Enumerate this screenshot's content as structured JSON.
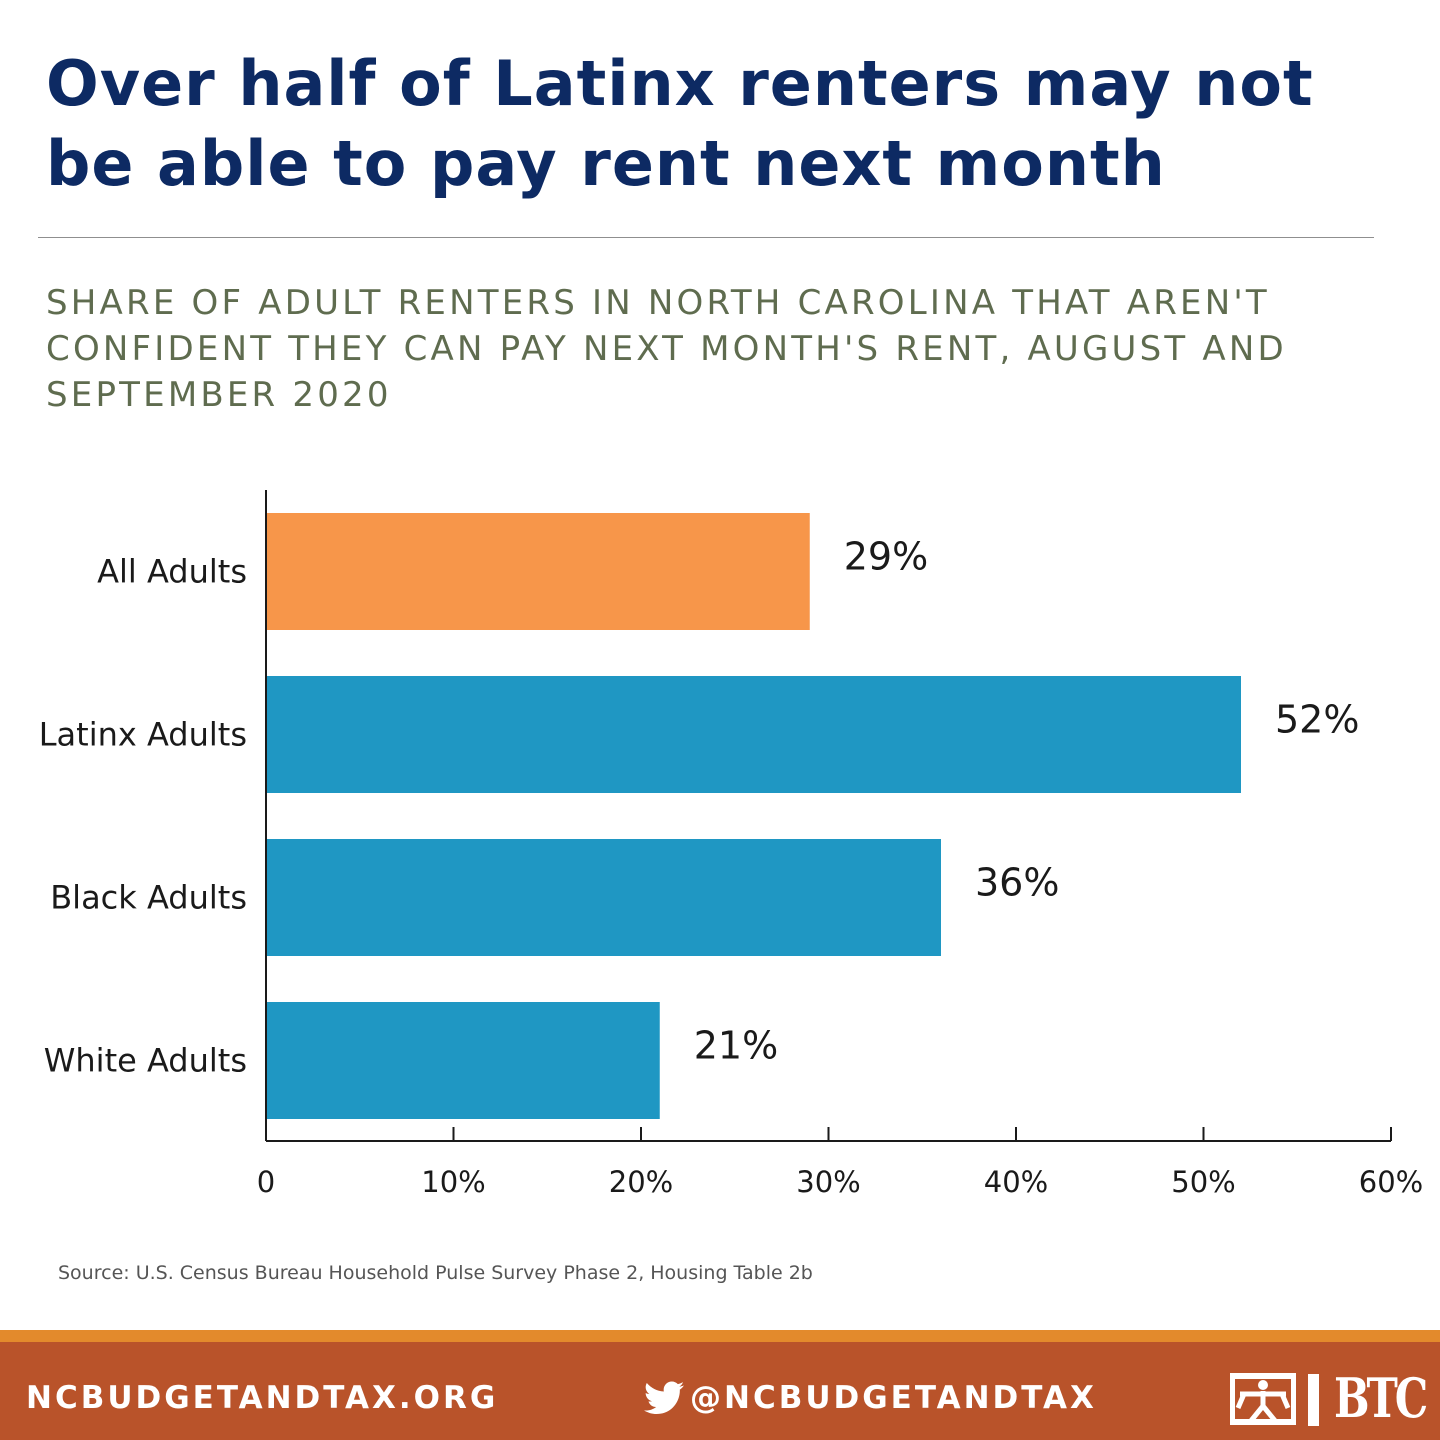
{
  "headline": "Over half of Latinx renters may not be able to pay rent next month",
  "colors": {
    "headline": "#0d2a63",
    "accent_bar": "#f7964a",
    "bar": "#1f97c3",
    "footer": "#b9532a",
    "footer_stripe": "#e38a2c"
  },
  "chart_data": {
    "type": "bar",
    "orientation": "horizontal",
    "title": "SHARE OF ADULT RENTERS IN NORTH CAROLINA THAT AREN'T CONFIDENT THEY CAN PAY NEXT MONTH'S RENT, AUGUST AND SEPTEMBER 2020",
    "categories": [
      "All Adults",
      "Latinx Adults",
      "Black Adults",
      "White Adults"
    ],
    "values": [
      29,
      52,
      36,
      21
    ],
    "value_labels": [
      "29%",
      "52%",
      "36%",
      "21%"
    ],
    "highlight_category": "All Adults",
    "xlim": [
      0,
      60
    ],
    "x_ticks": [
      0,
      10,
      20,
      30,
      40,
      50,
      60
    ],
    "x_tick_labels": [
      "0",
      "10%",
      "20%",
      "30%",
      "40%",
      "50%",
      "60%"
    ],
    "xlabel": "",
    "ylabel": "",
    "grid": false,
    "legend": "none"
  },
  "source": "Source: U.S. Census Bureau Household Pulse Survey Phase 2, Housing Table 2b",
  "footer": {
    "website": "NCBUDGETANDTAX.ORG",
    "twitter_handle": "@NCBUDGETANDTAX",
    "twitter_icon": "twitter-bird-icon",
    "logo_text": "BTC",
    "logo_icon": "btc-figure-logo-icon"
  }
}
